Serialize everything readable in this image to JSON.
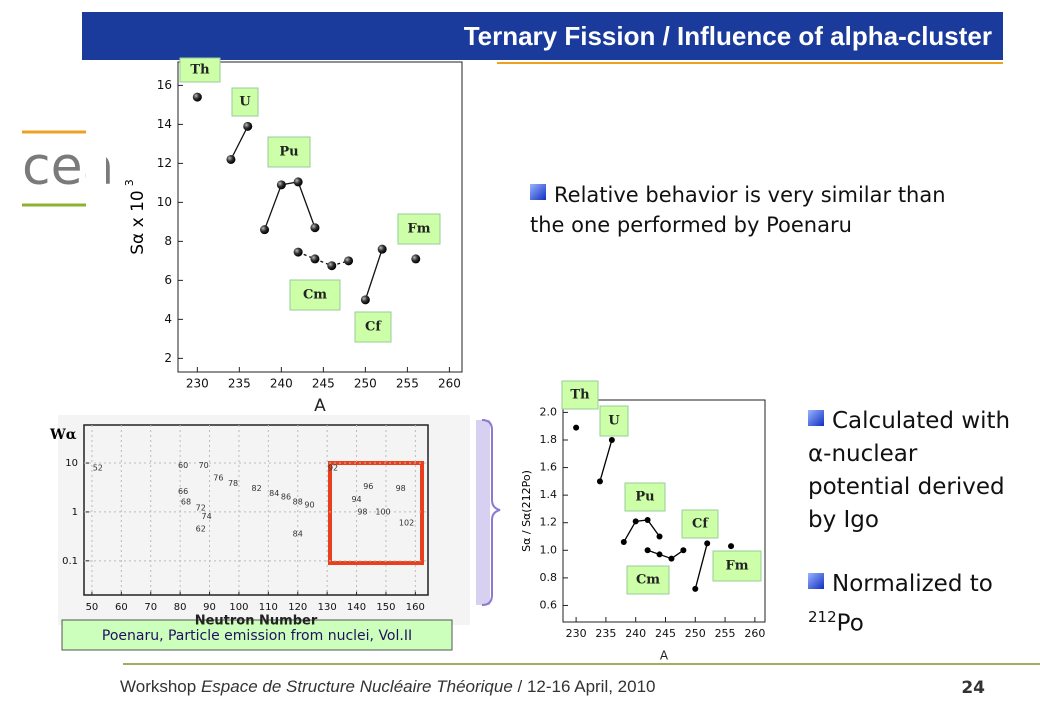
{
  "header": {
    "title": "Ternary Fission / Influence of alpha-cluster",
    "logo": "cea"
  },
  "chart_data": [
    {
      "type": "scatter",
      "x_label": "A",
      "y_label": "Sα x 10",
      "y_label_sup": "3",
      "xlim": [
        227.7,
        261.5
      ],
      "xticks": [
        230,
        235,
        240,
        245,
        250,
        255,
        260
      ],
      "ylim": [
        1.3,
        17.2
      ],
      "yticks": [
        2,
        4,
        6,
        8,
        10,
        12,
        14,
        16
      ],
      "series": [
        {
          "name": "Th",
          "color": "#111111",
          "x": [
            230
          ],
          "values": [
            15.4
          ]
        },
        {
          "name": "U",
          "color": "#111111",
          "line": "solid",
          "x": [
            234,
            236
          ],
          "values": [
            12.2,
            13.9
          ]
        },
        {
          "name": "Pu",
          "color": "#111111",
          "line": "solid",
          "x": [
            238,
            240,
            242,
            244
          ],
          "values": [
            8.6,
            10.9,
            11.05,
            8.7
          ]
        },
        {
          "name": "Cm",
          "color": "#111111",
          "line": "dashed",
          "x": [
            242,
            244,
            246,
            248
          ],
          "values": [
            7.45,
            7.1,
            6.75,
            7.0
          ]
        },
        {
          "name": "Cf",
          "color": "#111111",
          "line": "solid",
          "x": [
            250,
            252
          ],
          "values": [
            5.0,
            7.6
          ]
        },
        {
          "name": "Fm",
          "color": "#111111",
          "x": [
            256
          ],
          "values": [
            7.1
          ]
        }
      ]
    },
    {
      "type": "scatter",
      "x_label": "A",
      "y_label": "Sα / Sα(212Po)",
      "xlim": [
        227.8,
        261.7
      ],
      "xticks": [
        230,
        235,
        240,
        245,
        250,
        255,
        260
      ],
      "ylim": [
        0.48,
        2.09
      ],
      "yticks": [
        0.6,
        0.8,
        {
          "value": 1,
          "label": "1.0"
        },
        1.2,
        1.4,
        1.6,
        1.8,
        {
          "value": 2,
          "label": "2.0"
        }
      ],
      "series": [
        {
          "name": "Th",
          "color": "#000000",
          "x": [
            230
          ],
          "values": [
            1.89
          ]
        },
        {
          "name": "U",
          "color": "#000000",
          "line": "solid",
          "x": [
            234,
            236
          ],
          "values": [
            1.5,
            1.8
          ]
        },
        {
          "name": "Pu",
          "color": "#000000",
          "line": "solid",
          "x": [
            238,
            240,
            242,
            244
          ],
          "values": [
            1.06,
            1.21,
            1.22,
            1.1
          ]
        },
        {
          "name": "Cm",
          "color": "#000000",
          "line": "solid",
          "x": [
            242,
            244,
            246,
            248
          ],
          "values": [
            1.0,
            0.97,
            0.94,
            1.0
          ]
        },
        {
          "name": "Cf",
          "color": "#000000",
          "line": "solid",
          "x": [
            250,
            252
          ],
          "values": [
            0.72,
            1.05
          ]
        },
        {
          "name": "Fm",
          "color": "#000000",
          "x": [
            256
          ],
          "values": [
            1.03
          ]
        }
      ]
    },
    {
      "type": "annotated",
      "x_label": "Neutron Number",
      "y_label": "Wα",
      "log_y": true,
      "xlim": [
        47.3,
        164.3
      ],
      "xticks": [
        50,
        60,
        70,
        80,
        90,
        100,
        110,
        120,
        130,
        140,
        150,
        160
      ],
      "ylim": [
        0.02,
        60
      ],
      "yticks": [
        0.1,
        1,
        10
      ],
      "annotations": [
        {
          "text": "52",
          "x": 52,
          "y": 8
        },
        {
          "text": "60",
          "x": 81,
          "y": 9
        },
        {
          "text": "70",
          "x": 88,
          "y": 9
        },
        {
          "text": "66",
          "x": 81,
          "y": 2.6
        },
        {
          "text": "68",
          "x": 82,
          "y": 1.6
        },
        {
          "text": "72",
          "x": 87,
          "y": 1.2
        },
        {
          "text": "74",
          "x": 89,
          "y": 0.8
        },
        {
          "text": "62",
          "x": 87,
          "y": 0.45
        },
        {
          "text": "76",
          "x": 93,
          "y": 5
        },
        {
          "text": "78",
          "x": 98,
          "y": 3.8
        },
        {
          "text": "82",
          "x": 106,
          "y": 3
        },
        {
          "text": "84",
          "x": 112,
          "y": 2.4
        },
        {
          "text": "86",
          "x": 116,
          "y": 2
        },
        {
          "text": "88",
          "x": 120,
          "y": 1.6
        },
        {
          "text": "90",
          "x": 124,
          "y": 1.4
        },
        {
          "text": "84",
          "x": 120,
          "y": 0.35
        },
        {
          "text": "92",
          "x": 132,
          "y": 8
        },
        {
          "text": "94",
          "x": 140,
          "y": 1.8
        },
        {
          "text": "96",
          "x": 144,
          "y": 3.3
        },
        {
          "text": "98",
          "x": 155,
          "y": 3
        },
        {
          "text": "98",
          "x": 142,
          "y": 1
        },
        {
          "text": "100",
          "x": 149,
          "y": 1
        },
        {
          "text": "102",
          "x": 157,
          "y": 0.6
        }
      ]
    }
  ],
  "bullets_top": [
    "Relative behavior is very similar than the one performed by Poenaru"
  ],
  "bullets_right": [
    {
      "text": "Calculated with α-nuclear potential derived by Igo"
    },
    {
      "text": "Normalized to",
      "sup": "212",
      "after": "Po"
    }
  ],
  "caption": "Poenaru, Particle emission from nuclei, Vol.II",
  "footer": {
    "before": "Workshop ",
    "italic": "Espace de Structure Nucléaire Théorique",
    "after": " / 12-16 April, 2010",
    "page": 24
  }
}
